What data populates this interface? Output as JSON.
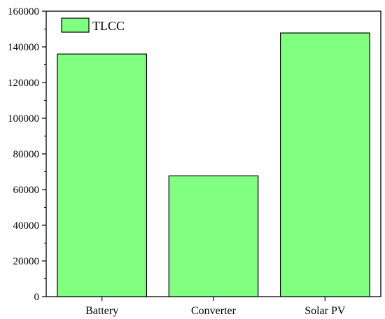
{
  "chart_data": {
    "type": "bar",
    "categories": [
      "Battery",
      "Converter",
      "Solar PV"
    ],
    "series": [
      {
        "name": "TLCC",
        "values": [
          136000,
          67700,
          147800
        ]
      }
    ],
    "ylim": [
      0,
      160000
    ],
    "yticks": [
      0,
      20000,
      40000,
      60000,
      80000,
      100000,
      120000,
      140000,
      160000
    ],
    "ytick_labels": [
      "0",
      "20000",
      "40000",
      "60000",
      "80000",
      "100000",
      "120000",
      "140000",
      "160000"
    ],
    "title": "",
    "xlabel": "",
    "ylabel": "",
    "grid": false,
    "legend_position": "top-left"
  },
  "colors": {
    "bar_fill": "#80ff80",
    "bar_stroke": "#000000",
    "axis": "#000000"
  }
}
